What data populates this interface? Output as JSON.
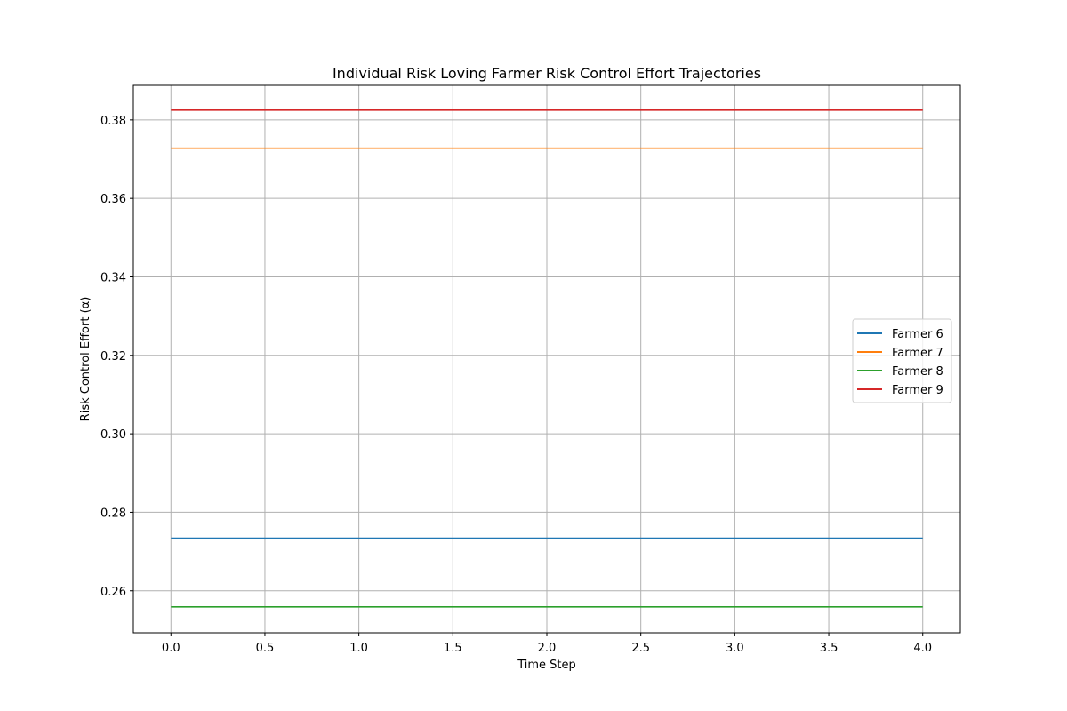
{
  "chart_data": {
    "type": "line",
    "title": "Individual Risk Loving Farmer Risk Control Effort Trajectories",
    "xlabel": "Time Step",
    "ylabel": "Risk Control Effort (α)",
    "x": [
      0,
      1,
      2,
      3,
      4
    ],
    "xlim": [
      -0.2,
      4.2
    ],
    "ylim": [
      0.2493,
      0.3888
    ],
    "xticks": [
      0.0,
      0.5,
      1.0,
      1.5,
      2.0,
      2.5,
      3.0,
      3.5,
      4.0
    ],
    "xtick_labels": [
      "0.0",
      "0.5",
      "1.0",
      "1.5",
      "2.0",
      "2.5",
      "3.0",
      "3.5",
      "4.0"
    ],
    "yticks": [
      0.26,
      0.28,
      0.3,
      0.32,
      0.34,
      0.36,
      0.38
    ],
    "ytick_labels": [
      "0.26",
      "0.28",
      "0.30",
      "0.32",
      "0.34",
      "0.36",
      "0.38"
    ],
    "grid": true,
    "legend_position": "center-right",
    "series": [
      {
        "name": "Farmer 6",
        "color": "#1f77b4",
        "values": [
          0.2734,
          0.2734,
          0.2734,
          0.2734,
          0.2734
        ]
      },
      {
        "name": "Farmer 7",
        "color": "#ff7f0e",
        "values": [
          0.3728,
          0.3728,
          0.3728,
          0.3728,
          0.3728
        ]
      },
      {
        "name": "Farmer 8",
        "color": "#2ca02c",
        "values": [
          0.2559,
          0.2559,
          0.2559,
          0.2559,
          0.2559
        ]
      },
      {
        "name": "Farmer 9",
        "color": "#d62728",
        "values": [
          0.3825,
          0.3825,
          0.3825,
          0.3825,
          0.3825
        ]
      }
    ]
  }
}
